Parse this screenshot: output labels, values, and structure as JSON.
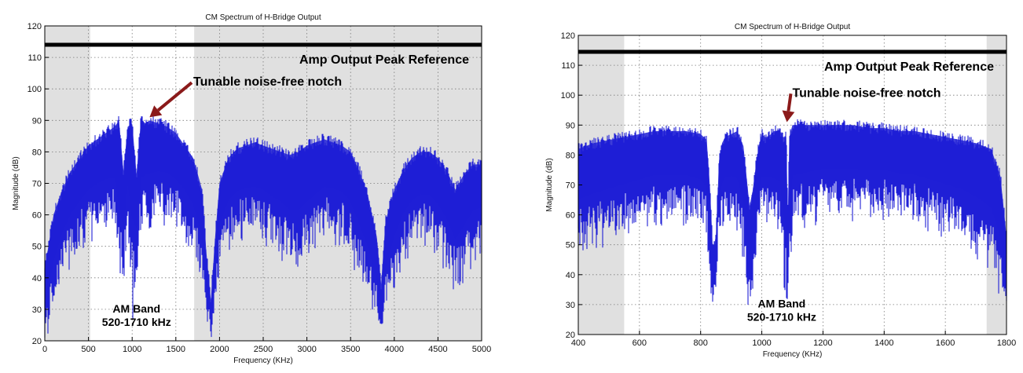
{
  "colors": {
    "trace": "#1f1fd6",
    "shade": "#e0e0e0",
    "reference": "#000000",
    "arrow": "#8b1a1a",
    "grid": "#7a7a7a"
  },
  "chart_data": [
    {
      "type": "line",
      "title": "CM Spectrum of H-Bridge Output",
      "xlabel": "Frequency (KHz)",
      "ylabel": "Magnitude (dB)",
      "xlim": [
        0,
        5000
      ],
      "ylim": [
        20,
        120
      ],
      "xticks": [
        0,
        500,
        1000,
        1500,
        2000,
        2500,
        3000,
        3500,
        4000,
        4500,
        5000
      ],
      "yticks": [
        20,
        30,
        40,
        50,
        60,
        70,
        80,
        90,
        100,
        110,
        120
      ],
      "grid": true,
      "reference_level": 114,
      "reference_label": "Amp Output Peak Reference",
      "shaded_regions": [
        [
          0,
          520
        ],
        [
          1710,
          5000
        ]
      ],
      "notch_label": "Tunable noise-free notch",
      "notch_x": 1200,
      "band_label_1": "AM Band",
      "band_label_2": "520-1710 kHz",
      "series": [
        {
          "x": [
            0,
            100,
            200,
            300,
            400,
            500,
            600,
            700,
            800,
            850,
            900,
            950,
            1000,
            1050,
            1100,
            1150,
            1200,
            1300,
            1400,
            1500,
            1600,
            1700,
            1800,
            1850,
            1900,
            1950,
            2000,
            2100,
            2200,
            2300,
            2400,
            2500,
            2600,
            2700,
            2800,
            2900,
            3000,
            3100,
            3200,
            3300,
            3400,
            3500,
            3600,
            3700,
            3800,
            3850,
            3900,
            4000,
            4100,
            4200,
            4300,
            4400,
            4500,
            4600,
            4700,
            4800,
            4900,
            5000
          ],
          "upper": [
            45,
            62,
            70,
            76,
            80,
            84,
            86,
            88,
            90,
            92,
            76,
            90,
            91,
            75,
            92,
            91,
            92,
            91,
            90,
            88,
            84,
            80,
            70,
            50,
            35,
            55,
            72,
            80,
            83,
            84,
            85,
            84,
            83,
            82,
            81,
            82,
            84,
            85,
            86,
            85,
            84,
            82,
            76,
            68,
            55,
            40,
            60,
            70,
            76,
            80,
            82,
            82,
            80,
            76,
            70,
            75,
            78,
            78
          ],
          "lower": [
            20,
            32,
            42,
            48,
            52,
            55,
            57,
            58,
            57,
            40,
            40,
            55,
            33,
            40,
            55,
            58,
            58,
            60,
            60,
            58,
            55,
            50,
            40,
            28,
            22,
            30,
            45,
            52,
            55,
            56,
            56,
            55,
            52,
            50,
            46,
            45,
            48,
            52,
            55,
            55,
            54,
            50,
            42,
            35,
            28,
            22,
            30,
            40,
            48,
            52,
            54,
            54,
            50,
            45,
            38,
            42,
            48,
            50
          ]
        }
      ]
    },
    {
      "type": "line",
      "title": "CM Spectrum of H-Bridge Output",
      "xlabel": "Frequency (KHz)",
      "ylabel": "Magnitude (dB)",
      "xlim": [
        400,
        1800
      ],
      "ylim": [
        20,
        120
      ],
      "xticks": [
        400,
        600,
        800,
        1000,
        1200,
        1400,
        1600,
        1800
      ],
      "yticks": [
        20,
        30,
        40,
        50,
        60,
        70,
        80,
        90,
        100,
        110,
        120
      ],
      "grid": true,
      "reference_level": 114.5,
      "reference_label": "Amp Output Peak Reference",
      "shaded_regions": [
        [
          400,
          550
        ],
        [
          1735,
          1800
        ]
      ],
      "notch_label": "Tunable noise-free notch",
      "notch_x": 1082,
      "band_label_1": "AM Band",
      "band_label_2": "520-1710 kHz",
      "series": [
        {
          "x": [
            400,
            450,
            500,
            550,
            600,
            650,
            700,
            750,
            800,
            820,
            830,
            840,
            850,
            860,
            870,
            880,
            900,
            920,
            940,
            950,
            960,
            970,
            980,
            990,
            1000,
            1010,
            1020,
            1040,
            1060,
            1070,
            1080,
            1085,
            1090,
            1100,
            1150,
            1200,
            1250,
            1300,
            1350,
            1400,
            1450,
            1500,
            1550,
            1600,
            1650,
            1700,
            1750,
            1780,
            1800
          ],
          "upper": [
            84,
            86,
            87,
            88,
            89,
            90,
            90,
            90,
            89,
            87,
            72,
            50,
            55,
            80,
            86,
            88,
            89,
            90,
            85,
            75,
            65,
            70,
            78,
            85,
            89,
            88,
            88,
            90,
            90,
            88,
            88,
            60,
            88,
            92,
            92,
            92,
            92,
            92,
            91,
            91,
            90,
            90,
            89,
            88,
            87,
            86,
            84,
            75,
            55
          ],
          "lower": [
            50,
            52,
            54,
            56,
            58,
            60,
            60,
            60,
            58,
            55,
            32,
            30,
            35,
            55,
            58,
            60,
            60,
            58,
            48,
            38,
            32,
            35,
            45,
            55,
            60,
            60,
            60,
            58,
            56,
            40,
            30,
            28,
            42,
            58,
            60,
            62,
            62,
            62,
            62,
            62,
            61,
            60,
            58,
            56,
            54,
            50,
            45,
            35,
            28
          ]
        }
      ]
    }
  ]
}
